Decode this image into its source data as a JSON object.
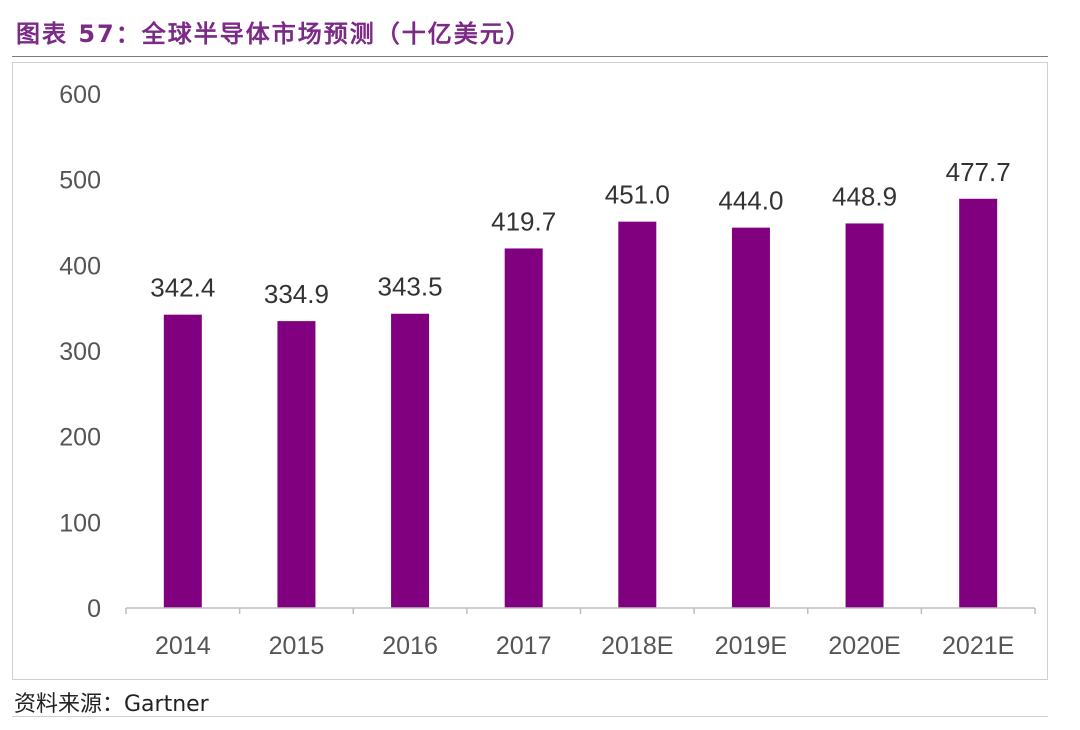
{
  "header": {
    "title": "图表 57：全球半导体市场预测（十亿美元）"
  },
  "footer": {
    "source_text": "资料来源：Gartner"
  },
  "colors": {
    "bar": "#800080",
    "title": "#7b2a86"
  },
  "chart_data": {
    "type": "bar",
    "title": "全球半导体市场预测（十亿美元）",
    "xlabel": "",
    "ylabel": "",
    "categories": [
      "2014",
      "2015",
      "2016",
      "2017",
      "2018E",
      "2019E",
      "2020E",
      "2021E"
    ],
    "values": [
      342.4,
      334.9,
      343.5,
      419.7,
      451.0,
      444.0,
      448.9,
      477.7
    ],
    "value_labels": [
      "342.4",
      "334.9",
      "343.5",
      "419.7",
      "451.0",
      "444.0",
      "448.9",
      "477.7"
    ],
    "yticks": [
      "0",
      "100",
      "200",
      "300",
      "400",
      "500",
      "600"
    ],
    "ylim": [
      0,
      600
    ],
    "grid": false,
    "legend": "none"
  }
}
